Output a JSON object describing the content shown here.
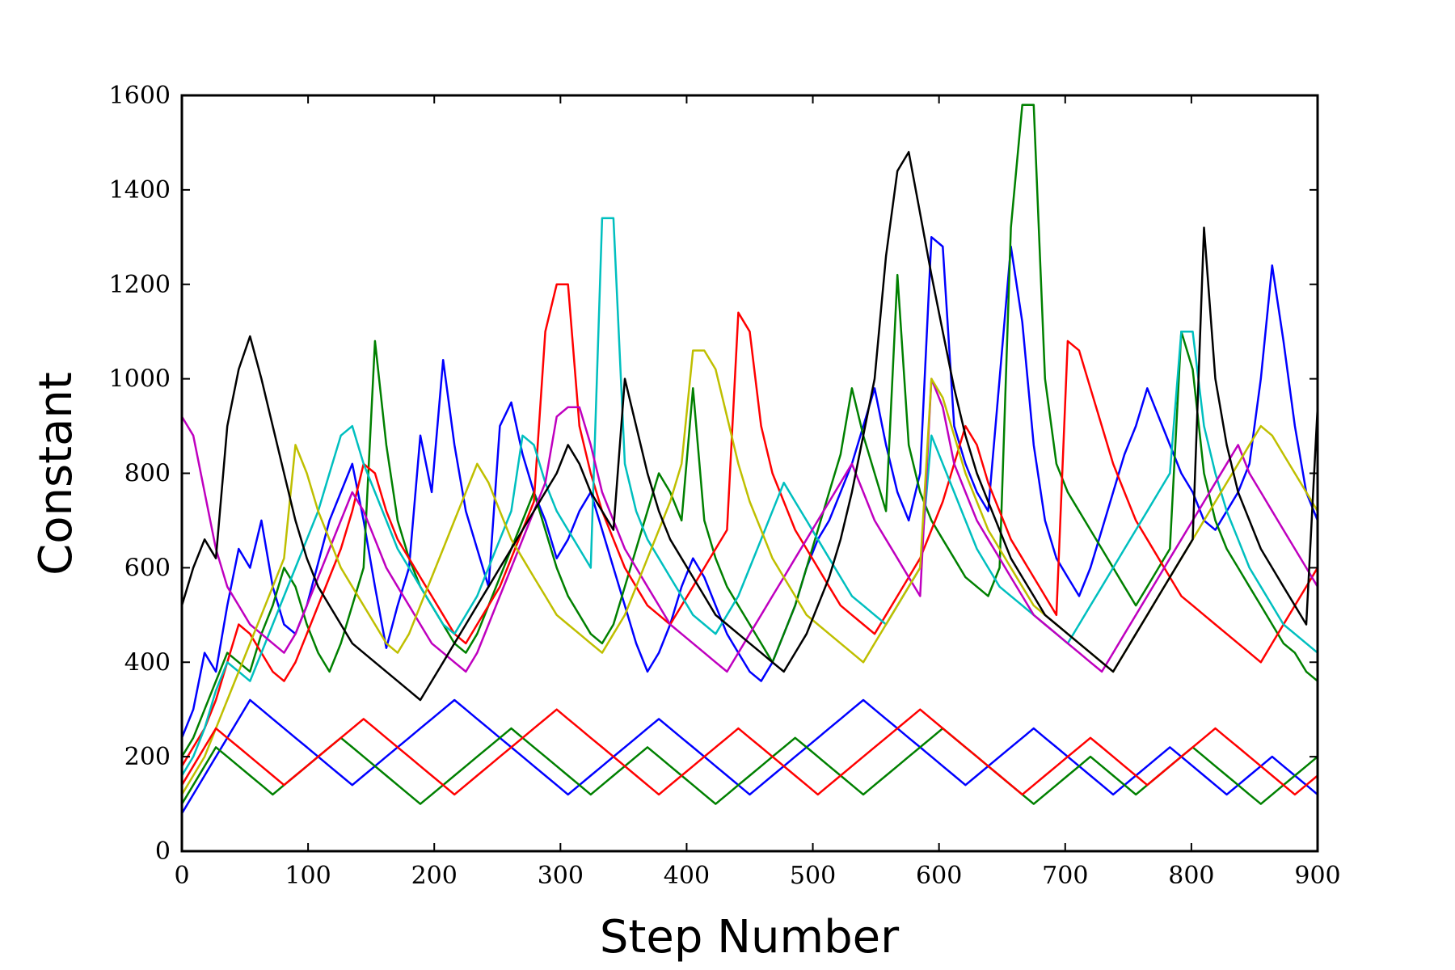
{
  "chart_data": {
    "type": "line",
    "title": "",
    "xlabel": "Step Number",
    "ylabel": "Constant",
    "xlim": [
      0,
      900
    ],
    "ylim": [
      0,
      1600
    ],
    "xticks": [
      "0",
      "100",
      "200",
      "300",
      "400",
      "500",
      "600",
      "700",
      "800",
      "900"
    ],
    "yticks": [
      "0",
      "200",
      "400",
      "600",
      "800",
      "1000",
      "1200",
      "1400",
      "1600"
    ],
    "grid": false,
    "legend": "none",
    "series_colors": [
      "#0000ff",
      "#008000",
      "#ff0000",
      "#00bfbf",
      "#bf00bf",
      "#bfbf00",
      "#000000"
    ],
    "series": [
      {
        "values": [
          240,
          300,
          420,
          380,
          520,
          640,
          600,
          700,
          560,
          480,
          460,
          520,
          610,
          700,
          760,
          820,
          700,
          560,
          430,
          520,
          600,
          880,
          760,
          1040,
          860,
          720,
          640,
          560,
          900,
          950,
          840,
          760,
          700,
          620,
          660,
          720,
          760,
          680,
          600,
          520,
          440,
          380,
          420,
          480,
          560,
          620,
          580,
          520,
          460,
          420,
          380,
          360,
          400,
          460,
          520,
          600,
          660,
          700,
          760,
          820,
          900,
          980,
          860,
          760,
          700,
          800,
          1300,
          1280,
          900,
          820,
          760,
          720,
          1000,
          1280,
          1120,
          860,
          700,
          620,
          580,
          540,
          600,
          680,
          760,
          840,
          900,
          980,
          920,
          860,
          800,
          760,
          700,
          680,
          720,
          760,
          820,
          1000,
          1240,
          1080,
          900,
          760,
          700
        ]
      },
      {
        "values": [
          200,
          240,
          300,
          360,
          420,
          400,
          380,
          460,
          520,
          600,
          560,
          480,
          420,
          380,
          440,
          520,
          600,
          1080,
          860,
          700,
          620,
          560,
          520,
          480,
          440,
          420,
          460,
          520,
          580,
          640,
          700,
          760,
          680,
          600,
          540,
          500,
          460,
          440,
          480,
          560,
          640,
          720,
          800,
          760,
          700,
          980,
          700,
          620,
          560,
          520,
          480,
          440,
          400,
          460,
          520,
          600,
          680,
          760,
          840,
          980,
          880,
          800,
          720,
          1220,
          860,
          760,
          700,
          660,
          620,
          580,
          560,
          540,
          600,
          1320,
          1580,
          1580,
          1000,
          820,
          760,
          720,
          680,
          640,
          600,
          560,
          520,
          560,
          600,
          640,
          1100,
          1020,
          800,
          700,
          640,
          600,
          560,
          520,
          480,
          440,
          420,
          380,
          360
        ]
      },
      {
        "values": [
          180,
          220,
          260,
          320,
          400,
          480,
          460,
          420,
          380,
          360,
          400,
          460,
          520,
          580,
          640,
          720,
          820,
          800,
          720,
          660,
          620,
          580,
          540,
          500,
          460,
          440,
          480,
          520,
          560,
          620,
          680,
          740,
          1100,
          1200,
          1200,
          900,
          800,
          720,
          660,
          600,
          560,
          520,
          500,
          480,
          520,
          560,
          600,
          640,
          680,
          1140,
          1100,
          900,
          800,
          740,
          680,
          640,
          600,
          560,
          520,
          500,
          480,
          460,
          500,
          540,
          580,
          620,
          680,
          740,
          820,
          900,
          860,
          780,
          720,
          660,
          620,
          580,
          540,
          500,
          1080,
          1060,
          980,
          900,
          820,
          760,
          700,
          660,
          620,
          580,
          540,
          520,
          500,
          480,
          460,
          440,
          420,
          400,
          440,
          480,
          520,
          560,
          600
        ]
      },
      {
        "values": [
          160,
          200,
          260,
          340,
          400,
          380,
          360,
          420,
          480,
          540,
          600,
          660,
          720,
          800,
          880,
          900,
          820,
          760,
          700,
          640,
          600,
          560,
          520,
          480,
          460,
          500,
          540,
          600,
          660,
          720,
          880,
          860,
          780,
          720,
          680,
          640,
          600,
          1340,
          1340,
          820,
          720,
          660,
          620,
          580,
          540,
          500,
          480,
          460,
          500,
          540,
          600,
          660,
          720,
          780,
          740,
          700,
          660,
          620,
          580,
          540,
          520,
          500,
          480,
          520,
          560,
          600,
          880,
          820,
          760,
          700,
          640,
          600,
          560,
          540,
          520,
          500,
          480,
          460,
          440,
          480,
          520,
          560,
          600,
          640,
          680,
          720,
          760,
          800,
          1100,
          1100,
          900,
          800,
          720,
          660,
          600,
          560,
          520,
          480,
          460,
          440,
          420
        ]
      },
      {
        "values": [
          920,
          880,
          760,
          640,
          560,
          520,
          480,
          460,
          440,
          420,
          460,
          520,
          580,
          640,
          700,
          760,
          720,
          660,
          600,
          560,
          520,
          480,
          440,
          420,
          400,
          380,
          420,
          480,
          540,
          600,
          660,
          720,
          780,
          920,
          940,
          940,
          860,
          760,
          700,
          640,
          600,
          560,
          520,
          480,
          460,
          440,
          420,
          400,
          380,
          420,
          460,
          500,
          540,
          580,
          620,
          660,
          700,
          740,
          780,
          820,
          760,
          700,
          660,
          620,
          580,
          540,
          1000,
          940,
          820,
          760,
          700,
          660,
          620,
          580,
          540,
          500,
          480,
          460,
          440,
          420,
          400,
          380,
          420,
          460,
          500,
          540,
          580,
          620,
          660,
          700,
          740,
          780,
          820,
          860,
          800,
          760,
          720,
          680,
          640,
          600,
          560
        ]
      },
      {
        "values": [
          120,
          160,
          200,
          260,
          320,
          380,
          440,
          500,
          560,
          620,
          860,
          800,
          720,
          660,
          600,
          560,
          520,
          480,
          440,
          420,
          460,
          520,
          580,
          640,
          700,
          760,
          820,
          780,
          720,
          660,
          620,
          580,
          540,
          500,
          480,
          460,
          440,
          420,
          460,
          500,
          560,
          620,
          680,
          740,
          820,
          1060,
          1060,
          1020,
          920,
          820,
          740,
          680,
          620,
          580,
          540,
          500,
          480,
          460,
          440,
          420,
          400,
          440,
          480,
          520,
          560,
          600,
          1000,
          960,
          880,
          800,
          740,
          680,
          640,
          600,
          560,
          520,
          500,
          480,
          460,
          440,
          420,
          400,
          380,
          420,
          460,
          500,
          540,
          580,
          620,
          660,
          700,
          740,
          780,
          820,
          860,
          900,
          880,
          840,
          800,
          760,
          720
        ]
      },
      {
        "values": [
          520,
          600,
          660,
          620,
          900,
          1020,
          1090,
          1000,
          900,
          800,
          700,
          620,
          560,
          520,
          480,
          440,
          420,
          400,
          380,
          360,
          340,
          320,
          360,
          400,
          440,
          480,
          520,
          560,
          600,
          640,
          680,
          720,
          760,
          800,
          860,
          820,
          760,
          720,
          680,
          1000,
          900,
          800,
          720,
          660,
          620,
          580,
          540,
          500,
          480,
          460,
          440,
          420,
          400,
          380,
          420,
          460,
          520,
          580,
          660,
          760,
          880,
          1000,
          1260,
          1440,
          1480,
          1350,
          1220,
          1100,
          980,
          880,
          800,
          740,
          680,
          620,
          580,
          540,
          500,
          480,
          460,
          440,
          420,
          400,
          380,
          420,
          460,
          500,
          540,
          580,
          620,
          660,
          1320,
          1000,
          860,
          760,
          700,
          640,
          600,
          560,
          520,
          480,
          940
        ]
      },
      {
        "values": [
          80,
          120,
          160,
          200,
          240,
          280,
          320,
          300,
          280,
          260,
          240,
          220,
          200,
          180,
          160,
          140,
          160,
          180,
          200,
          220,
          240,
          260,
          280,
          300,
          320,
          300,
          280,
          260,
          240,
          220,
          200,
          180,
          160,
          140,
          120,
          140,
          160,
          180,
          200,
          220,
          240,
          260,
          280,
          260,
          240,
          220,
          200,
          180,
          160,
          140,
          120,
          140,
          160,
          180,
          200,
          220,
          240,
          260,
          280,
          300,
          320,
          300,
          280,
          260,
          240,
          220,
          200,
          180,
          160,
          140,
          160,
          180,
          200,
          220,
          240,
          260,
          240,
          220,
          200,
          180,
          160,
          140,
          120,
          140,
          160,
          180,
          200,
          220,
          200,
          180,
          160,
          140,
          120,
          140,
          160,
          180,
          200,
          180,
          160,
          140,
          120
        ]
      },
      {
        "values": [
          100,
          140,
          180,
          220,
          200,
          180,
          160,
          140,
          120,
          140,
          160,
          180,
          200,
          220,
          240,
          220,
          200,
          180,
          160,
          140,
          120,
          100,
          120,
          140,
          160,
          180,
          200,
          220,
          240,
          260,
          240,
          220,
          200,
          180,
          160,
          140,
          120,
          140,
          160,
          180,
          200,
          220,
          200,
          180,
          160,
          140,
          120,
          100,
          120,
          140,
          160,
          180,
          200,
          220,
          240,
          220,
          200,
          180,
          160,
          140,
          120,
          140,
          160,
          180,
          200,
          220,
          240,
          260,
          240,
          220,
          200,
          180,
          160,
          140,
          120,
          100,
          120,
          140,
          160,
          180,
          200,
          180,
          160,
          140,
          120,
          140,
          160,
          180,
          200,
          220,
          200,
          180,
          160,
          140,
          120,
          100,
          120,
          140,
          160,
          180,
          200
        ]
      },
      {
        "values": [
          140,
          180,
          220,
          260,
          240,
          220,
          200,
          180,
          160,
          140,
          160,
          180,
          200,
          220,
          240,
          260,
          280,
          260,
          240,
          220,
          200,
          180,
          160,
          140,
          120,
          140,
          160,
          180,
          200,
          220,
          240,
          260,
          280,
          300,
          280,
          260,
          240,
          220,
          200,
          180,
          160,
          140,
          120,
          140,
          160,
          180,
          200,
          220,
          240,
          260,
          240,
          220,
          200,
          180,
          160,
          140,
          120,
          140,
          160,
          180,
          200,
          220,
          240,
          260,
          280,
          300,
          280,
          260,
          240,
          220,
          200,
          180,
          160,
          140,
          120,
          140,
          160,
          180,
          200,
          220,
          240,
          220,
          200,
          180,
          160,
          140,
          160,
          180,
          200,
          220,
          240,
          260,
          240,
          220,
          200,
          180,
          160,
          140,
          120,
          140,
          160
        ]
      }
    ]
  }
}
